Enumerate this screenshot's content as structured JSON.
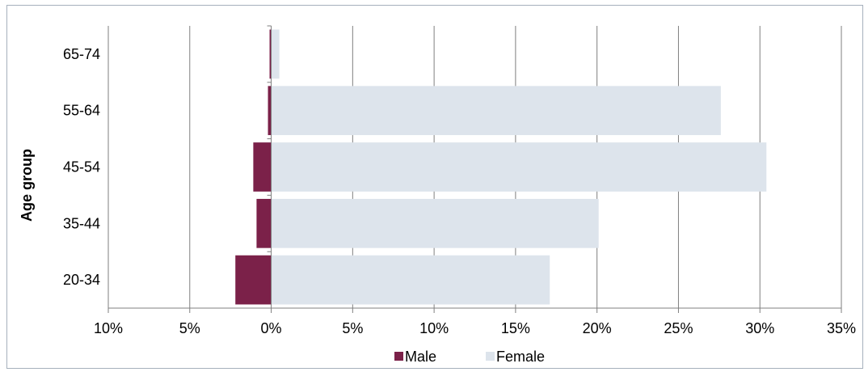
{
  "chart_data": {
    "type": "bar",
    "orientation": "horizontal",
    "layout": "population-pyramid",
    "title": "",
    "xlabel": "",
    "ylabel": "Age group",
    "categories": [
      "20-34",
      "35-44",
      "45-54",
      "55-64",
      "65-74"
    ],
    "x_ticks": [
      "10%",
      "5%",
      "0%",
      "5%",
      "10%",
      "15%",
      "20%",
      "25%",
      "30%",
      "35%"
    ],
    "xlim": [
      -10,
      35
    ],
    "x_unit": "%",
    "grid": "vertical",
    "legend_position": "bottom",
    "series": [
      {
        "name": "Male",
        "side": "left",
        "color": "#7b2149",
        "values": [
          2.2,
          0.9,
          1.1,
          0.2,
          0.1
        ]
      },
      {
        "name": "Female",
        "side": "right",
        "color": "#dde4ec",
        "values": [
          17.1,
          20.1,
          30.4,
          27.6,
          0.5
        ]
      }
    ]
  }
}
